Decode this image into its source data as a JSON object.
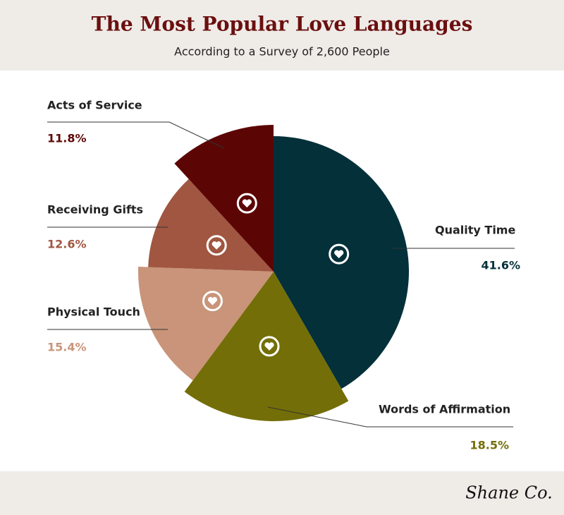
{
  "chart_data": {
    "type": "pie",
    "title": "The Most Popular Love Languages",
    "subtitle": "According to a Survey of 2,600 People",
    "categories": [
      "Quality Time",
      "Words of Affirmation",
      "Physical Touch",
      "Receiving Gifts",
      "Acts of Service"
    ],
    "values": [
      41.6,
      18.5,
      15.4,
      12.6,
      11.8
    ],
    "value_labels": [
      "41.6%",
      "18.5%",
      "15.4%",
      "12.6%",
      "11.8%"
    ],
    "colors": [
      "#04303a",
      "#736e07",
      "#c99479",
      "#a05640",
      "#5c0505"
    ]
  },
  "footer": {
    "brand": "Shane Co."
  }
}
